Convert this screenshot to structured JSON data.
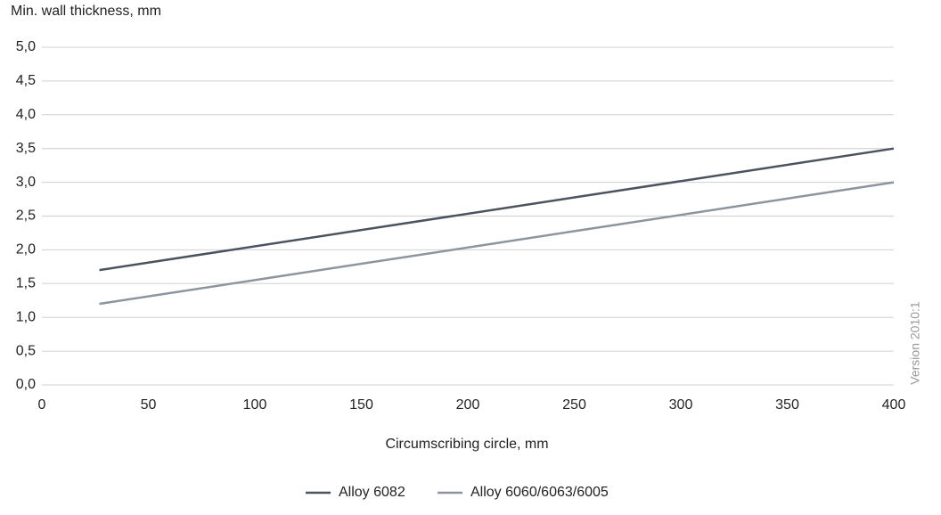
{
  "chart_data": {
    "type": "line",
    "y_label": "Min. wall thickness, mm",
    "x_label": "Circumscribing circle, mm",
    "annotation": "Version 2010:1",
    "x": [
      27,
      400
    ],
    "series": [
      {
        "name": "Alloy 6082",
        "color": "#4b5360",
        "values": [
          1.7,
          3.5
        ]
      },
      {
        "name": "Alloy 6060/6063/6005",
        "color": "#8c959e",
        "values": [
          1.2,
          3.0
        ]
      }
    ],
    "xlim": [
      0,
      400
    ],
    "xticks": [
      0,
      50,
      100,
      150,
      200,
      250,
      300,
      350,
      400
    ],
    "ylim": [
      0,
      5
    ],
    "yticks": [
      {
        "value": 0,
        "label": "0,0"
      },
      {
        "value": 0.5,
        "label": "0,5"
      },
      {
        "value": 1,
        "label": "1,0"
      },
      {
        "value": 1.5,
        "label": "1,5"
      },
      {
        "value": 2,
        "label": "2,0"
      },
      {
        "value": 2.5,
        "label": "2,5"
      },
      {
        "value": 3,
        "label": "3,0"
      },
      {
        "value": 3.5,
        "label": "3,5"
      },
      {
        "value": 4,
        "label": "4,0"
      },
      {
        "value": 4.5,
        "label": "4,5"
      },
      {
        "value": 5,
        "label": "5,0"
      }
    ],
    "grid": true,
    "legend": "bottom"
  }
}
